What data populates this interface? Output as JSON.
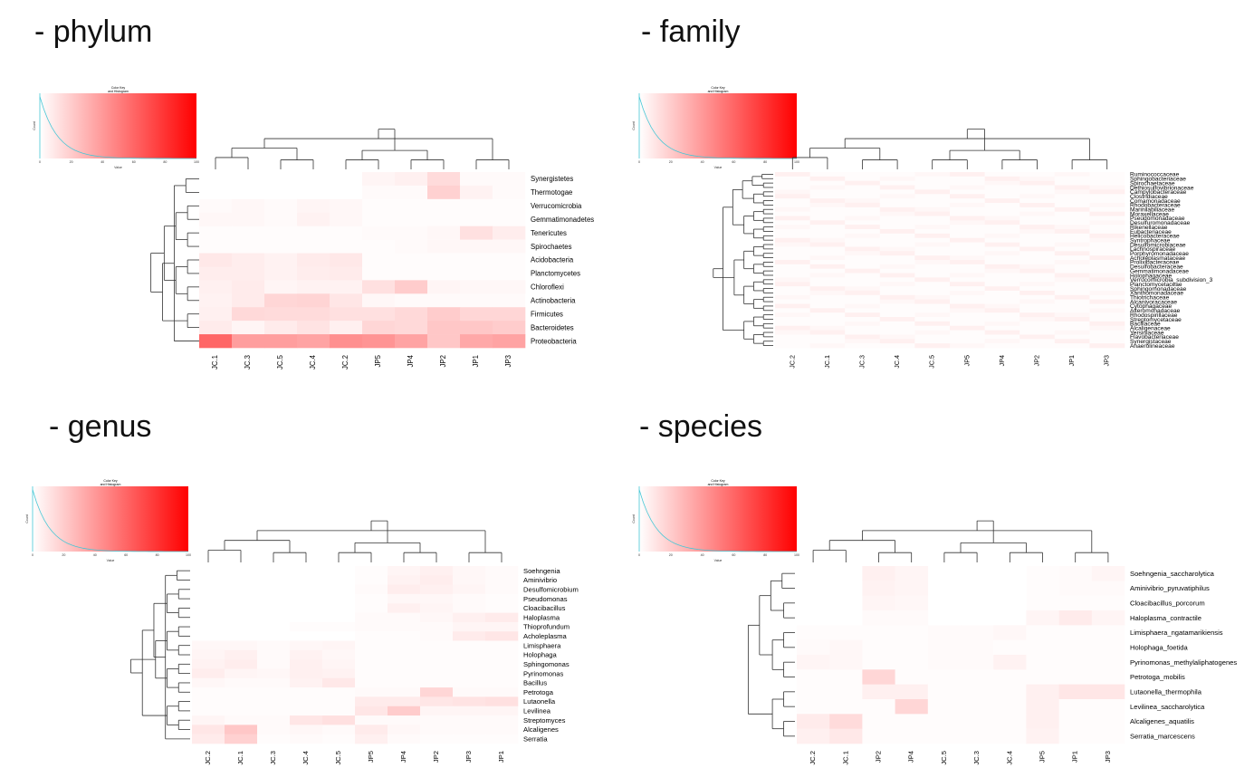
{
  "panels": [
    {
      "id": "phylum",
      "title": "- phylum"
    },
    {
      "id": "family",
      "title": "- family"
    },
    {
      "id": "genus",
      "title": "- genus"
    },
    {
      "id": "species",
      "title": "- species"
    }
  ],
  "color_key": {
    "title_line1": "Color Key",
    "title_line2": "and Histogram",
    "x_ticks": [
      "0",
      "20",
      "40",
      "60",
      "80",
      "100"
    ],
    "x_label": "Value",
    "y_label": "Count",
    "low_color": "#ffffff",
    "high_color": "#ff0000"
  },
  "chart_data": [
    {
      "type": "heatmap",
      "title": "- phylum",
      "columns": [
        "JC.1",
        "JC.3",
        "JC.5",
        "JC.4",
        "JC.2",
        "JP5",
        "JP4",
        "JP2",
        "JP1",
        "JP3"
      ],
      "rows": [
        "Synergistetes",
        "Thermotogae",
        "Verrucomicrobia",
        "Gemmatimonadetes",
        "Tenericutes",
        "Spirochaetes",
        "Acidobacteria",
        "Planctomycetes",
        "Chloroflexi",
        "Actinobacteria",
        "Firmicutes",
        "Bacteroidetes",
        "Proteobacteria"
      ],
      "values": [
        [
          0,
          0,
          0,
          0,
          0,
          4,
          6,
          14,
          2,
          2
        ],
        [
          0,
          0,
          0,
          0,
          0,
          2,
          2,
          18,
          5,
          2
        ],
        [
          2,
          3,
          2,
          4,
          3,
          1,
          1,
          1,
          1,
          1
        ],
        [
          3,
          3,
          2,
          5,
          3,
          1,
          1,
          1,
          1,
          1
        ],
        [
          1,
          1,
          1,
          1,
          1,
          2,
          2,
          3,
          12,
          7
        ],
        [
          1,
          1,
          1,
          1,
          1,
          1,
          2,
          3,
          3,
          3
        ],
        [
          9,
          7,
          5,
          8,
          9,
          1,
          1,
          1,
          1,
          1
        ],
        [
          7,
          7,
          5,
          7,
          8,
          1,
          1,
          1,
          1,
          1
        ],
        [
          6,
          8,
          4,
          5,
          5,
          12,
          20,
          4,
          3,
          3
        ],
        [
          5,
          8,
          16,
          17,
          10,
          3,
          2,
          2,
          2,
          2
        ],
        [
          6,
          15,
          14,
          14,
          12,
          12,
          15,
          20,
          16,
          16
        ],
        [
          8,
          4,
          8,
          11,
          6,
          16,
          15,
          22,
          22,
          20
        ],
        [
          60,
          38,
          38,
          36,
          44,
          42,
          36,
          22,
          34,
          36
        ]
      ]
    },
    {
      "type": "heatmap",
      "title": "- family",
      "columns": [
        "JC.2",
        "JC.1",
        "JC.3",
        "JC.4",
        "JC.5",
        "JP5",
        "JP4",
        "JP2",
        "JP1",
        "JP3"
      ],
      "rows": [
        "Ruminococcaceae",
        "Sphingobacteriaceae",
        "Spirochaetaceae",
        "Dethiosulfovibrionaceae",
        "Campylobacteraceae",
        "Clostridiaceae",
        "Comamonadaceae",
        "Rhodobacteraceae",
        "Marinilabiliaceae",
        "Moraxellaceae",
        "Pseudomonadaceae",
        "Desulfuromonadaceae",
        "Rikenellaceae",
        "Eubacteriaceae",
        "Helicobacteraceae",
        "Syntrophaceae",
        "Desulfomicrobiaceae",
        "Lachnospiraceae",
        "Porphyromonadaceae",
        "Acholeplasmataceae",
        "Prolixibacteraceae",
        "Desulfobacteraceae",
        "Gemmatimonadaceae",
        "Holophagaceae",
        "Verrucomicrobia_subdivision_3",
        "Planctomycetaceae",
        "Sphingomonadaceae",
        "Xanthomonadaceae",
        "Thiotrichaceae",
        "Alcanivoracaceae",
        "Cytophagaceae",
        "Alteromonadaceae",
        "Rhodospirillaceae",
        "Streptomycetaceae",
        "Bacillaceae",
        "Alcaligenaceae",
        "Yersiniaceae",
        "Flavobacteriaceae",
        "Synergistaceae",
        "Anaerolineaceae"
      ],
      "values": []
    },
    {
      "type": "heatmap",
      "title": "- genus",
      "columns": [
        "JC.2",
        "JC.1",
        "JC.3",
        "JC.4",
        "JC.5",
        "JP5",
        "JP4",
        "JP2",
        "JP3",
        "JP1"
      ],
      "rows": [
        "Soehngenia",
        "Aminivibrio",
        "Desulfomicrobium",
        "Pseudomonas",
        "Cloacibacillus",
        "Haloplasma",
        "Thioprofundum",
        "Acholeplasma",
        "Limisphaera",
        "Holophaga",
        "Sphingomonas",
        "Pyrinomonas",
        "Bacillus",
        "Petrotoga",
        "Lutaonella",
        "Levilinea",
        "Streptomyces",
        "Alcaligenes",
        "Serratia"
      ],
      "values": [
        [
          0,
          0,
          0,
          0,
          0,
          1,
          4,
          6,
          3,
          2
        ],
        [
          0,
          0,
          0,
          0,
          0,
          1,
          5,
          7,
          3,
          2
        ],
        [
          0,
          0,
          0,
          0,
          0,
          2,
          7,
          6,
          4,
          2
        ],
        [
          0,
          0,
          0,
          0,
          0,
          1,
          3,
          3,
          2,
          1
        ],
        [
          0,
          0,
          0,
          0,
          0,
          1,
          6,
          4,
          2,
          1
        ],
        [
          0,
          0,
          0,
          0,
          0,
          2,
          2,
          3,
          6,
          8
        ],
        [
          0,
          0,
          0,
          1,
          1,
          2,
          2,
          2,
          4,
          4
        ],
        [
          0,
          0,
          0,
          0,
          0,
          1,
          1,
          2,
          8,
          10
        ],
        [
          3,
          3,
          2,
          3,
          4,
          1,
          1,
          1,
          1,
          1
        ],
        [
          4,
          6,
          2,
          5,
          3,
          1,
          1,
          1,
          1,
          1
        ],
        [
          5,
          7,
          2,
          6,
          4,
          1,
          1,
          1,
          1,
          1
        ],
        [
          7,
          4,
          3,
          6,
          5,
          1,
          1,
          1,
          1,
          1
        ],
        [
          3,
          2,
          2,
          5,
          9,
          1,
          1,
          1,
          1,
          1
        ],
        [
          1,
          1,
          1,
          1,
          1,
          2,
          2,
          16,
          2,
          2
        ],
        [
          1,
          1,
          1,
          1,
          1,
          8,
          8,
          10,
          11,
          12
        ],
        [
          1,
          1,
          1,
          1,
          1,
          10,
          20,
          4,
          4,
          4
        ],
        [
          4,
          2,
          2,
          10,
          12,
          2,
          2,
          2,
          2,
          2
        ],
        [
          10,
          22,
          2,
          3,
          2,
          8,
          3,
          2,
          2,
          2
        ],
        [
          8,
          18,
          1,
          2,
          1,
          6,
          2,
          1,
          1,
          1
        ]
      ]
    },
    {
      "type": "heatmap",
      "title": "- species",
      "columns": [
        "JC.2",
        "JC.1",
        "JP2",
        "JP4",
        "JC.5",
        "JC.3",
        "JC.4",
        "JP5",
        "JP1",
        "JP3"
      ],
      "rows": [
        "Soehngenia_saccharolytica",
        "Aminivibrio_pyruvatiphilus",
        "Cloacibacillus_porcorum",
        "Haloplasma_contractile",
        "Limisphaera_ngatamarikiensis",
        "Holophaga_foetida",
        "Pyrinomonas_methylaliphatogenes",
        "Petrotoga_mobilis",
        "Lutaonella_thermophila",
        "Levilinea_saccharolytica",
        "Alcaligenes_aquatilis",
        "Serratia_marcescens"
      ],
      "values": [
        [
          0,
          0,
          6,
          4,
          0,
          0,
          0,
          1,
          2,
          4
        ],
        [
          0,
          0,
          5,
          4,
          0,
          0,
          0,
          1,
          2,
          2
        ],
        [
          0,
          0,
          4,
          3,
          0,
          0,
          0,
          1,
          1,
          1
        ],
        [
          0,
          0,
          2,
          2,
          0,
          0,
          0,
          4,
          8,
          4
        ],
        [
          1,
          1,
          1,
          1,
          2,
          2,
          3,
          1,
          1,
          1
        ],
        [
          2,
          3,
          1,
          1,
          2,
          2,
          1,
          1,
          1,
          1
        ],
        [
          4,
          3,
          1,
          1,
          2,
          2,
          5,
          1,
          1,
          1
        ],
        [
          1,
          1,
          16,
          1,
          1,
          1,
          1,
          1,
          1,
          1
        ],
        [
          1,
          1,
          6,
          6,
          1,
          1,
          1,
          6,
          10,
          10
        ],
        [
          1,
          1,
          1,
          16,
          1,
          1,
          1,
          6,
          1,
          1
        ],
        [
          8,
          14,
          1,
          1,
          1,
          1,
          1,
          6,
          1,
          1
        ],
        [
          6,
          9,
          1,
          1,
          1,
          1,
          1,
          5,
          1,
          1
        ]
      ]
    }
  ]
}
